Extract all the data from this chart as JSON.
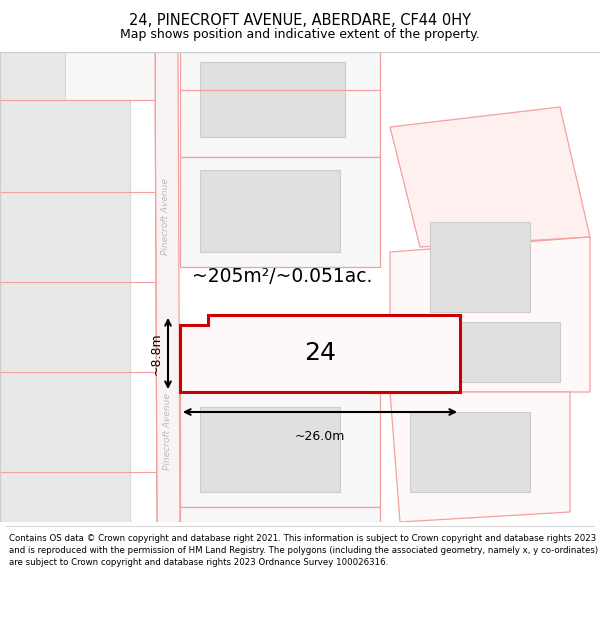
{
  "title": "24, PINECROFT AVENUE, ABERDARE, CF44 0HY",
  "subtitle": "Map shows position and indicative extent of the property.",
  "footer": "Contains OS data © Crown copyright and database right 2021. This information is subject to Crown copyright and database rights 2023 and is reproduced with the permission of HM Land Registry. The polygons (including the associated geometry, namely x, y co-ordinates) are subject to Crown copyright and database rights 2023 Ordnance Survey 100026316.",
  "area_label": "~205m²/~0.051ac.",
  "width_label": "~26.0m",
  "height_label": "~8.8m",
  "number_label": "24",
  "bg_color": "#ffffff",
  "map_bg": "#ffffff",
  "plot_edge_color": "#f5a0a0",
  "highlight_edge_color": "#cc0000",
  "building_fill": "#e0e0e0",
  "building_edge": "#cccccc",
  "street_text_color": "#bbbbbb",
  "road_fill": "#ffffff",
  "title_fontsize": 10.5,
  "subtitle_fontsize": 9,
  "footer_fontsize": 6.2,
  "label_fontsize": 13.5,
  "number_fontsize": 18,
  "dim_fontsize": 9
}
